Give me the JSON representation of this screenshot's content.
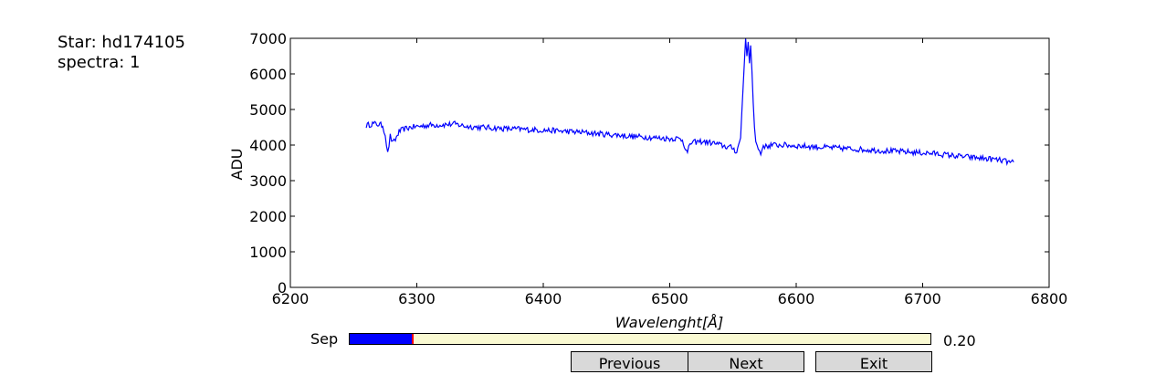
{
  "info": {
    "star_line": "Star: hd174105",
    "spectra_line": "spectra: 1"
  },
  "chart_data": {
    "type": "line",
    "title": "",
    "xlabel": "Wavelenght[Å]",
    "ylabel": "ADU",
    "xlim": [
      6200,
      6800
    ],
    "ylim": [
      0,
      7000
    ],
    "xticks": [
      6200,
      6300,
      6400,
      6500,
      6600,
      6700,
      6800
    ],
    "yticks": [
      0,
      1000,
      2000,
      3000,
      4000,
      5000,
      6000,
      7000
    ],
    "grid": false,
    "series": [
      {
        "color": "#0000ff",
        "x": [
          6260,
          6265,
          6270,
          6273,
          6275,
          6277,
          6279,
          6281,
          6283,
          6286,
          6290,
          6295,
          6300,
          6310,
          6320,
          6330,
          6340,
          6350,
          6360,
          6370,
          6380,
          6390,
          6400,
          6410,
          6420,
          6430,
          6440,
          6450,
          6460,
          6470,
          6480,
          6490,
          6500,
          6505,
          6510,
          6514,
          6516,
          6520,
          6525,
          6530,
          6535,
          6540,
          6545,
          6550,
          6553,
          6556,
          6558,
          6560,
          6561,
          6562,
          6563,
          6564,
          6565,
          6566,
          6567,
          6568,
          6570,
          6572,
          6574,
          6576,
          6580,
          6590,
          6600,
          6610,
          6620,
          6630,
          6640,
          6650,
          6660,
          6670,
          6680,
          6690,
          6700,
          6710,
          6720,
          6730,
          6740,
          6750,
          6760,
          6765,
          6770,
          6772
        ],
        "y": [
          4550,
          4600,
          4580,
          4550,
          4300,
          3750,
          4250,
          4050,
          4150,
          4380,
          4450,
          4500,
          4520,
          4560,
          4570,
          4590,
          4520,
          4500,
          4480,
          4460,
          4450,
          4430,
          4420,
          4400,
          4380,
          4360,
          4330,
          4300,
          4280,
          4240,
          4230,
          4200,
          4180,
          4190,
          4150,
          3750,
          4050,
          4080,
          4100,
          4080,
          4050,
          4000,
          3950,
          3920,
          3800,
          4200,
          5600,
          7000,
          6500,
          6900,
          6300,
          6800,
          6100,
          5200,
          4500,
          4100,
          3900,
          3750,
          4000,
          3950,
          4000,
          4000,
          3980,
          3960,
          3940,
          3920,
          3900,
          3880,
          3860,
          3840,
          3820,
          3800,
          3780,
          3760,
          3720,
          3680,
          3650,
          3620,
          3580,
          3550,
          3500,
          3520
        ]
      }
    ]
  },
  "controls": {
    "slider_label": "Sep",
    "slider_value_text": "0.20",
    "slider_fraction": 0.11,
    "previous_label": "Previous",
    "next_label": "Next",
    "exit_label": "Exit"
  }
}
